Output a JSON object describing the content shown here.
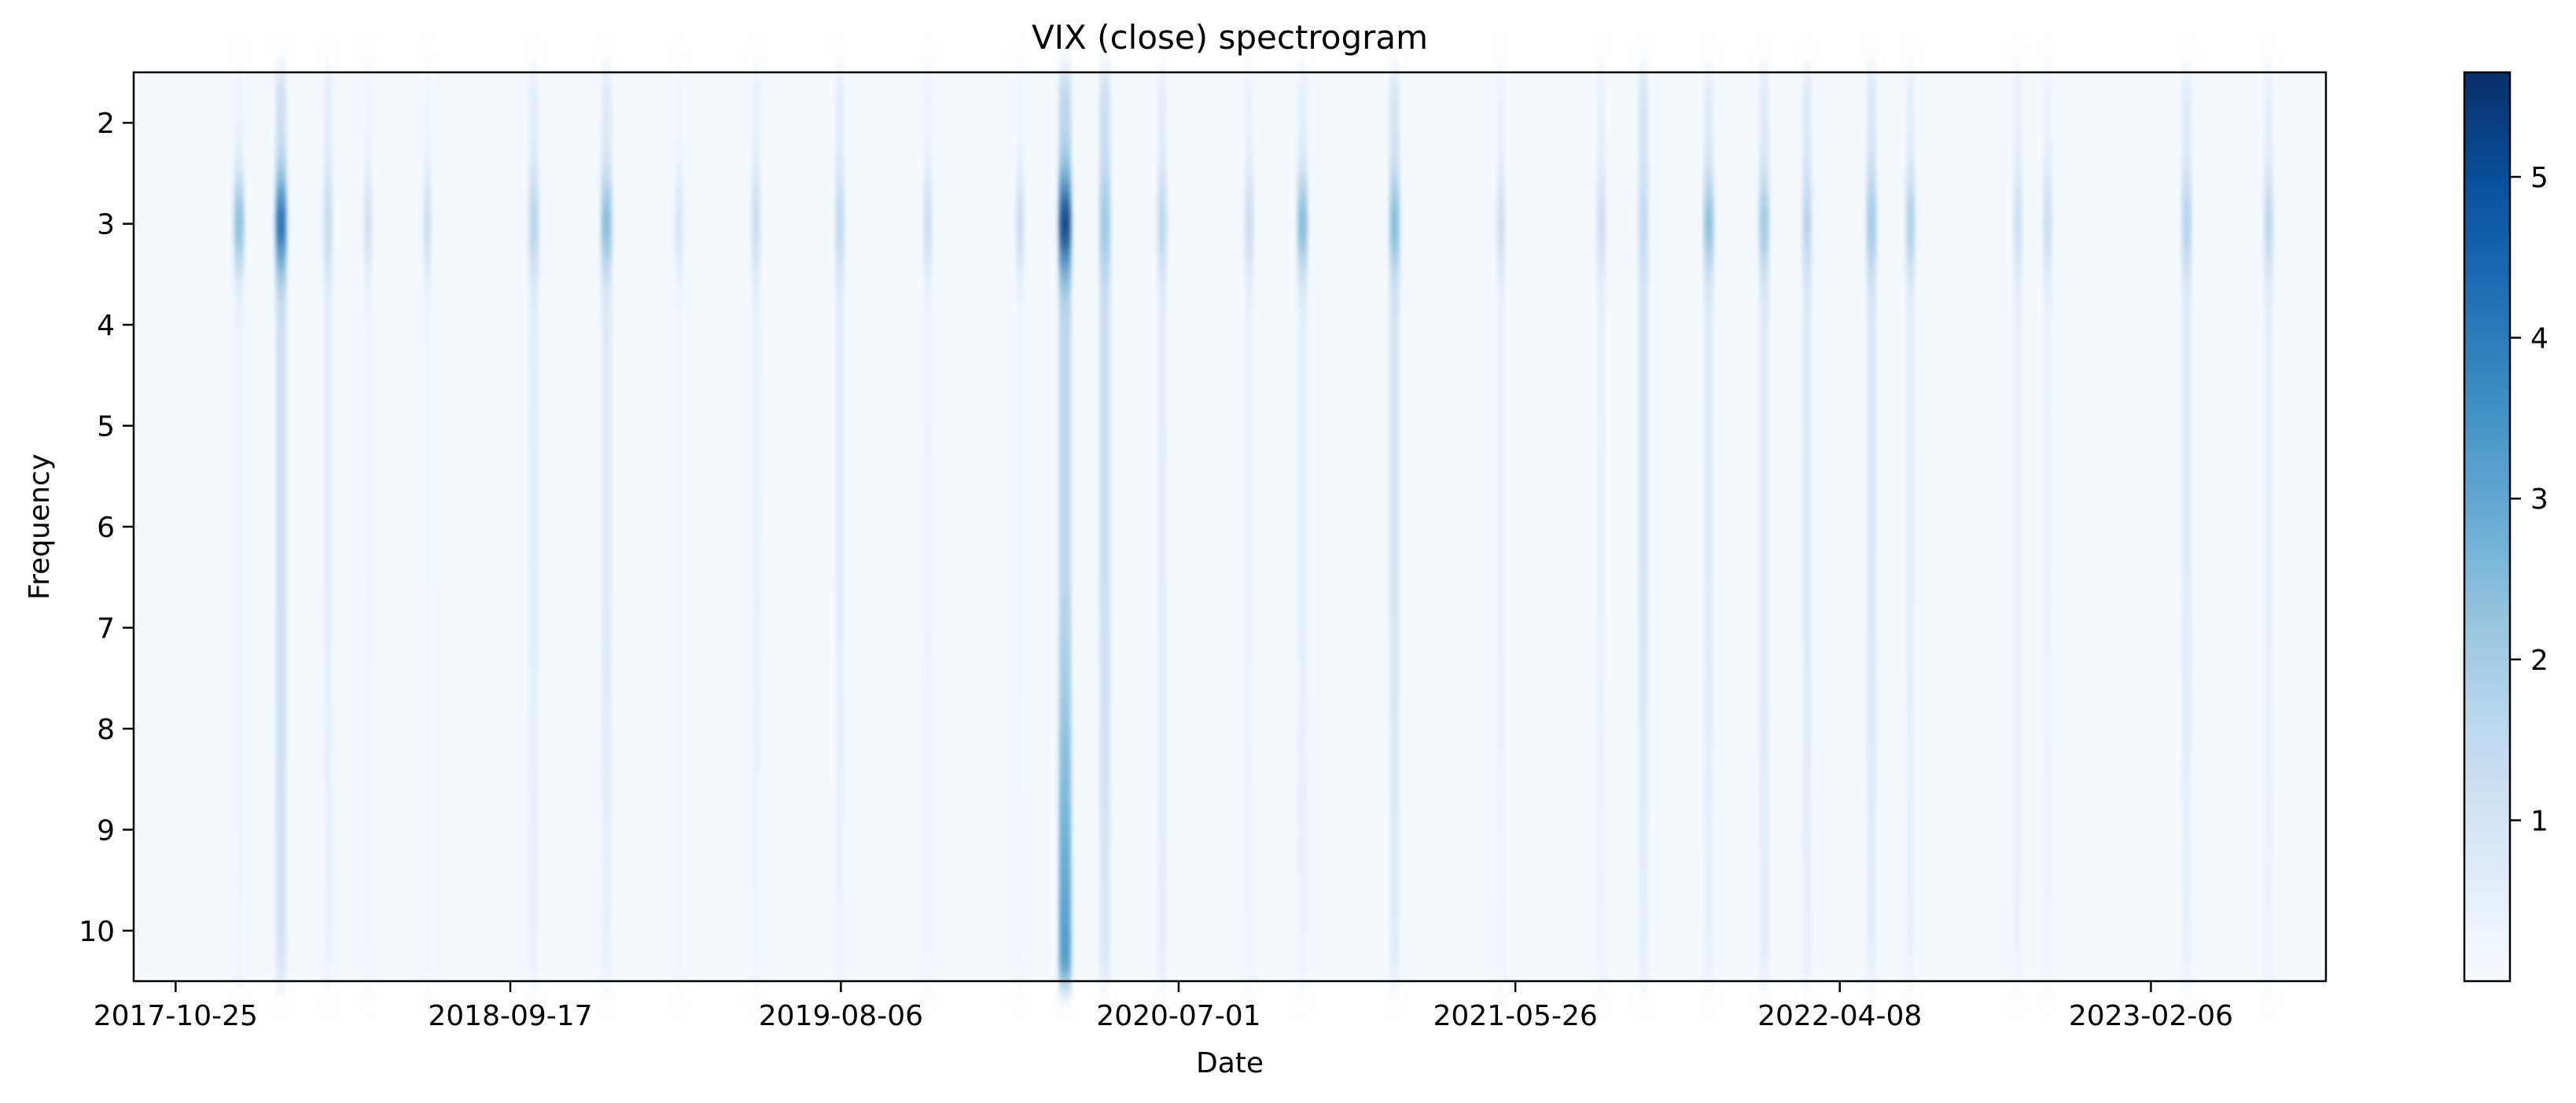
{
  "chart_data": {
    "type": "heatmap",
    "title": "VIX (close) spectrogram",
    "xlabel": "Date",
    "ylabel": "Frequency",
    "x_tick_labels": [
      "2017-10-25",
      "2018-09-17",
      "2019-08-06",
      "2020-07-01",
      "2021-05-26",
      "2022-04-08",
      "2023-02-06"
    ],
    "y_ticks": [
      2,
      3,
      4,
      5,
      6,
      7,
      8,
      9,
      10
    ],
    "ylim": [
      1.5,
      10.5
    ],
    "x_range": [
      "2017-09-14",
      "2023-07-27"
    ],
    "colormap": "Blues",
    "colorbar": {
      "ticks": [
        1,
        2,
        3,
        4,
        5
      ],
      "range": [
        0,
        5.65
      ]
    },
    "grid": false,
    "columns": [
      {
        "date": "2017-12-26",
        "w": 0.0045,
        "peak": 2.6,
        "base": 0.35,
        "tail": 0.25
      },
      {
        "date": "2018-02-05",
        "w": 0.0048,
        "peak": 4.6,
        "base": 1.25,
        "tail": 1.0
      },
      {
        "date": "2018-03-23",
        "w": 0.004,
        "peak": 1.5,
        "base": 0.6,
        "tail": 0.4
      },
      {
        "date": "2018-05-01",
        "w": 0.0035,
        "peak": 1.3,
        "base": 0.3,
        "tail": 0.25
      },
      {
        "date": "2018-06-28",
        "w": 0.0035,
        "peak": 1.4,
        "base": 0.3,
        "tail": 0.2
      },
      {
        "date": "2018-10-10",
        "w": 0.0045,
        "peak": 1.8,
        "base": 0.6,
        "tail": 0.4
      },
      {
        "date": "2018-12-20",
        "w": 0.0048,
        "peak": 2.6,
        "base": 0.75,
        "tail": 0.45
      },
      {
        "date": "2019-03-01",
        "w": 0.004,
        "peak": 1.0,
        "base": 0.25,
        "tail": 0.2
      },
      {
        "date": "2019-05-15",
        "w": 0.004,
        "peak": 1.4,
        "base": 0.45,
        "tail": 0.3
      },
      {
        "date": "2019-08-05",
        "w": 0.004,
        "peak": 1.6,
        "base": 0.65,
        "tail": 0.35
      },
      {
        "date": "2019-10-30",
        "w": 0.004,
        "peak": 1.3,
        "base": 0.35,
        "tail": 0.25
      },
      {
        "date": "2020-01-28",
        "w": 0.0035,
        "peak": 1.5,
        "base": 0.3,
        "tail": 0.2
      },
      {
        "date": "2020-03-12",
        "w": 0.0055,
        "peak": 5.6,
        "base": 1.6,
        "tail": 3.5
      },
      {
        "date": "2020-04-20",
        "w": 0.005,
        "peak": 2.2,
        "base": 1.3,
        "tail": 0.8
      },
      {
        "date": "2020-06-15",
        "w": 0.004,
        "peak": 1.7,
        "base": 0.65,
        "tail": 0.55
      },
      {
        "date": "2020-09-08",
        "w": 0.004,
        "peak": 1.4,
        "base": 0.45,
        "tail": 0.3
      },
      {
        "date": "2020-10-30",
        "w": 0.0045,
        "peak": 2.7,
        "base": 0.55,
        "tail": 0.35
      },
      {
        "date": "2021-01-28",
        "w": 0.0045,
        "peak": 2.6,
        "base": 1.0,
        "tail": 0.65
      },
      {
        "date": "2021-05-12",
        "w": 0.0035,
        "peak": 1.4,
        "base": 0.45,
        "tail": 0.3
      },
      {
        "date": "2021-08-18",
        "w": 0.004,
        "peak": 1.3,
        "base": 0.5,
        "tail": 0.35
      },
      {
        "date": "2021-09-28",
        "w": 0.0045,
        "peak": 1.5,
        "base": 1.0,
        "tail": 0.5
      },
      {
        "date": "2021-12-01",
        "w": 0.0045,
        "peak": 2.5,
        "base": 0.7,
        "tail": 0.45
      },
      {
        "date": "2022-01-24",
        "w": 0.0045,
        "peak": 2.2,
        "base": 0.75,
        "tail": 0.6
      },
      {
        "date": "2022-03-07",
        "w": 0.004,
        "peak": 1.8,
        "base": 0.8,
        "tail": 0.5
      },
      {
        "date": "2022-05-09",
        "w": 0.0045,
        "peak": 2.2,
        "base": 0.9,
        "tail": 0.55
      },
      {
        "date": "2022-06-16",
        "w": 0.004,
        "peak": 2.0,
        "base": 0.6,
        "tail": 0.4
      },
      {
        "date": "2022-09-29",
        "w": 0.004,
        "peak": 1.3,
        "base": 0.5,
        "tail": 0.35
      },
      {
        "date": "2022-10-28",
        "w": 0.004,
        "peak": 1.4,
        "base": 0.45,
        "tail": 0.3
      },
      {
        "date": "2023-03-13",
        "w": 0.0045,
        "peak": 1.8,
        "base": 0.7,
        "tail": 0.45
      },
      {
        "date": "2023-06-01",
        "w": 0.004,
        "peak": 1.7,
        "base": 0.55,
        "tail": 0.35
      }
    ]
  }
}
